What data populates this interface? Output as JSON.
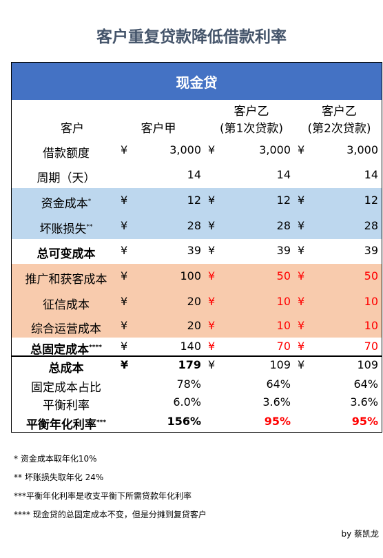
{
  "title": "客户重复贷款降低借款利率",
  "table": {
    "caption": "现金贷",
    "header": [
      [
        "客户"
      ],
      [
        "客户甲"
      ],
      [
        "客户乙",
        "(第1次贷款)"
      ],
      [
        "客户乙",
        "(第2次贷款)"
      ]
    ],
    "rows": [
      {
        "label": "借款额度",
        "cells": [
          {
            "currency": "¥",
            "value": "3,000"
          },
          {
            "currency": "¥",
            "value": "3,000"
          },
          {
            "currency": "¥",
            "value": "3,000"
          }
        ]
      },
      {
        "label": "周期（天）",
        "cells": [
          {
            "value": "14"
          },
          {
            "value": "14"
          },
          {
            "value": "14"
          }
        ]
      },
      {
        "label": "资金成本",
        "note": "*",
        "cells": [
          {
            "currency": "¥",
            "value": "12"
          },
          {
            "currency": "¥",
            "value": "12"
          },
          {
            "currency": "¥",
            "value": "12"
          }
        ]
      },
      {
        "label": "坏账损失",
        "note": "**",
        "cells": [
          {
            "currency": "¥",
            "value": "28"
          },
          {
            "currency": "¥",
            "value": "28"
          },
          {
            "currency": "¥",
            "value": "28"
          }
        ]
      },
      {
        "label": "总可变成本",
        "cells": [
          {
            "currency": "¥",
            "value": "39"
          },
          {
            "currency": "¥",
            "value": "39"
          },
          {
            "currency": "¥",
            "value": "39"
          }
        ]
      },
      {
        "label": "推广和获客成本",
        "cells": [
          {
            "currency": "¥",
            "value": "100"
          },
          {
            "currency": "¥",
            "value": "50"
          },
          {
            "currency": "¥",
            "value": "50"
          }
        ]
      },
      {
        "label": "征信成本",
        "cells": [
          {
            "currency": "¥",
            "value": "20"
          },
          {
            "currency": "¥",
            "value": "10"
          },
          {
            "currency": "¥",
            "value": "10"
          }
        ]
      },
      {
        "label": "综合运营成本",
        "cells": [
          {
            "currency": "¥",
            "value": "20"
          },
          {
            "currency": "¥",
            "value": "10"
          },
          {
            "currency": "¥",
            "value": "10"
          }
        ]
      },
      {
        "label": "总固定成本",
        "note": "****",
        "cells": [
          {
            "currency": "¥",
            "value": "140"
          },
          {
            "currency": "¥",
            "value": "70"
          },
          {
            "currency": "¥",
            "value": "70"
          }
        ]
      },
      {
        "label": "总成本",
        "cells": [
          {
            "currency": "¥",
            "value": "179"
          },
          {
            "currency": "¥",
            "value": "109"
          },
          {
            "currency": "¥",
            "value": "109"
          }
        ]
      },
      {
        "label": "固定成本占比",
        "cells": [
          {
            "value": "78%"
          },
          {
            "value": "64%"
          },
          {
            "value": "64%"
          }
        ]
      },
      {
        "label": "平衡利率",
        "cells": [
          {
            "value": "6.0%"
          },
          {
            "value": "3.6%"
          },
          {
            "value": "3.6%"
          }
        ]
      },
      {
        "label": "平衡年化利率",
        "note": "***",
        "cells": [
          {
            "value": "156%"
          },
          {
            "value": "95%"
          },
          {
            "value": "95%"
          }
        ]
      }
    ]
  },
  "footnotes": [
    "* 资金成本取年化10%",
    "** 坏账损失取年化 24%",
    "***平衡年化利率是收支平衡下所需贷款年化利率",
    "**** 现金贷的总固定成本不变，但是分摊到复贷客户"
  ],
  "author": "by 蔡凯龙"
}
